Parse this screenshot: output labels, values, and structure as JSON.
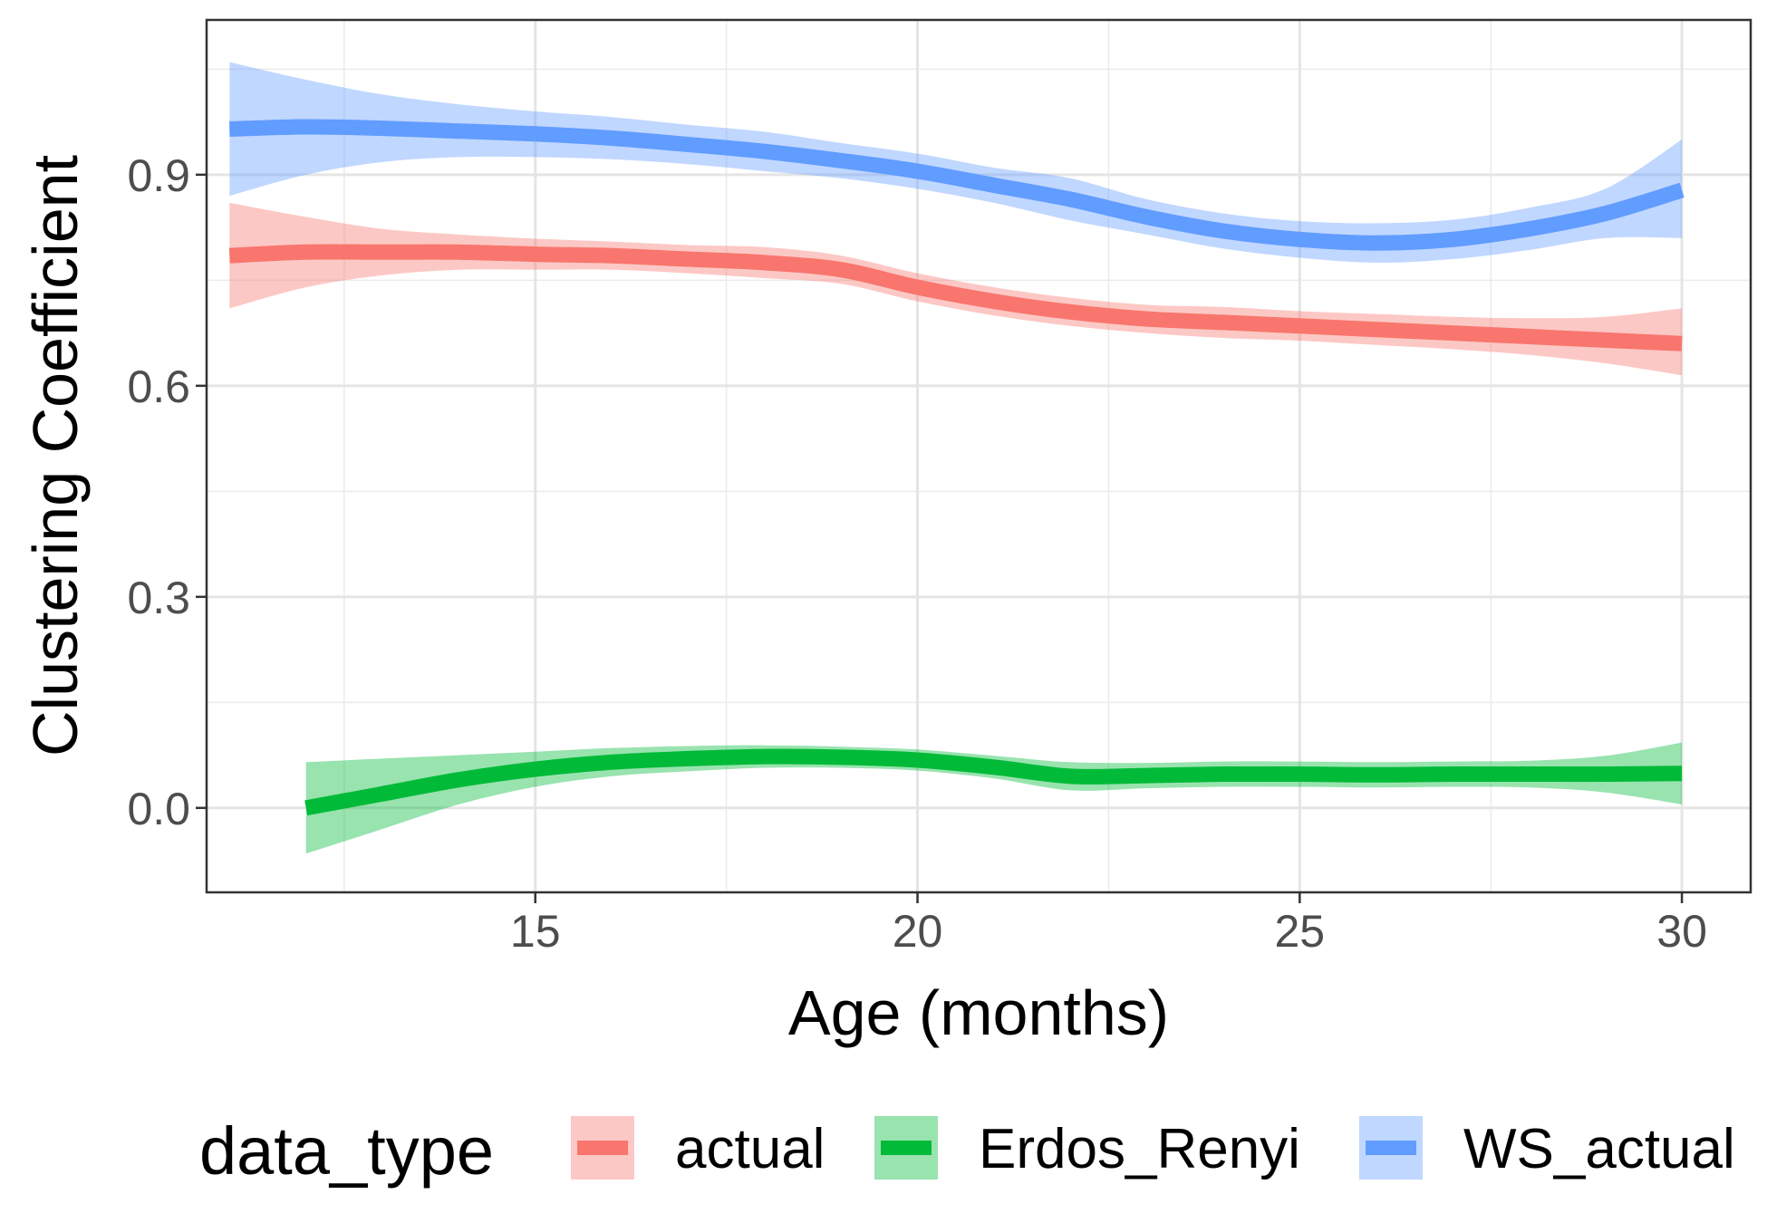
{
  "chart_data": {
    "type": "line",
    "xlabel": "Age (months)",
    "ylabel": "Clustering Coefficient",
    "xlim": [
      10.7,
      30.9
    ],
    "ylim": [
      -0.12,
      1.12
    ],
    "x_ticks": [
      15,
      20,
      25,
      30
    ],
    "x_tick_labels": [
      "15",
      "20",
      "25",
      "30"
    ],
    "x_minor_ticks": [
      12.5,
      17.5,
      22.5,
      27.5
    ],
    "y_ticks": [
      0.0,
      0.3,
      0.6,
      0.9
    ],
    "y_tick_labels": [
      "0.0",
      "0.3",
      "0.6",
      "0.9"
    ],
    "y_minor_ticks": [
      0.15,
      0.45,
      0.75,
      1.05
    ],
    "grid": true,
    "confidence_bands": true,
    "legend": {
      "title": "data_type",
      "position": "bottom"
    },
    "series": [
      {
        "name": "actual",
        "color": "#F8766D",
        "x": [
          11,
          12,
          13,
          14,
          15,
          16,
          17,
          18,
          19,
          20,
          21,
          22,
          23,
          24,
          25,
          26,
          27,
          28,
          29,
          30
        ],
        "y": [
          0.785,
          0.79,
          0.79,
          0.79,
          0.787,
          0.785,
          0.78,
          0.775,
          0.765,
          0.74,
          0.72,
          0.705,
          0.695,
          0.69,
          0.685,
          0.68,
          0.675,
          0.67,
          0.665,
          0.66
        ],
        "lower": [
          0.71,
          0.74,
          0.757,
          0.765,
          0.765,
          0.765,
          0.76,
          0.753,
          0.745,
          0.72,
          0.7,
          0.685,
          0.675,
          0.668,
          0.664,
          0.658,
          0.652,
          0.644,
          0.632,
          0.615
        ],
        "upper": [
          0.86,
          0.84,
          0.823,
          0.815,
          0.809,
          0.805,
          0.8,
          0.797,
          0.785,
          0.76,
          0.74,
          0.725,
          0.715,
          0.712,
          0.706,
          0.702,
          0.698,
          0.696,
          0.698,
          0.71
        ]
      },
      {
        "name": "Erdos_Renyi",
        "color": "#00BA38",
        "x": [
          12,
          13,
          14,
          15,
          16,
          17,
          18,
          19,
          20,
          21,
          22,
          23,
          24,
          25,
          26,
          27,
          28,
          29,
          30
        ],
        "y": [
          0.0,
          0.02,
          0.04,
          0.055,
          0.065,
          0.07,
          0.073,
          0.072,
          0.068,
          0.058,
          0.045,
          0.046,
          0.048,
          0.048,
          0.047,
          0.048,
          0.048,
          0.048,
          0.049
        ],
        "lower": [
          -0.065,
          -0.03,
          0.005,
          0.03,
          0.045,
          0.052,
          0.057,
          0.057,
          0.053,
          0.042,
          0.025,
          0.028,
          0.03,
          0.03,
          0.029,
          0.03,
          0.029,
          0.022,
          0.005
        ],
        "upper": [
          0.065,
          0.07,
          0.075,
          0.08,
          0.085,
          0.088,
          0.089,
          0.087,
          0.083,
          0.074,
          0.065,
          0.064,
          0.066,
          0.066,
          0.065,
          0.066,
          0.067,
          0.074,
          0.093
        ]
      },
      {
        "name": "WS_actual",
        "color": "#619CFF",
        "x": [
          11,
          12,
          13,
          14,
          15,
          16,
          17,
          18,
          19,
          20,
          21,
          22,
          23,
          24,
          25,
          26,
          27,
          28,
          29,
          30
        ],
        "y": [
          0.965,
          0.968,
          0.966,
          0.962,
          0.958,
          0.952,
          0.943,
          0.933,
          0.92,
          0.905,
          0.885,
          0.865,
          0.84,
          0.82,
          0.808,
          0.803,
          0.808,
          0.823,
          0.845,
          0.878
        ],
        "lower": [
          0.87,
          0.9,
          0.918,
          0.925,
          0.925,
          0.922,
          0.915,
          0.905,
          0.895,
          0.88,
          0.86,
          0.835,
          0.815,
          0.795,
          0.782,
          0.775,
          0.78,
          0.793,
          0.81,
          0.81
        ],
        "upper": [
          1.06,
          1.035,
          1.014,
          1.0,
          0.99,
          0.982,
          0.971,
          0.961,
          0.945,
          0.93,
          0.91,
          0.895,
          0.865,
          0.845,
          0.834,
          0.831,
          0.836,
          0.853,
          0.88,
          0.95
        ]
      }
    ]
  }
}
